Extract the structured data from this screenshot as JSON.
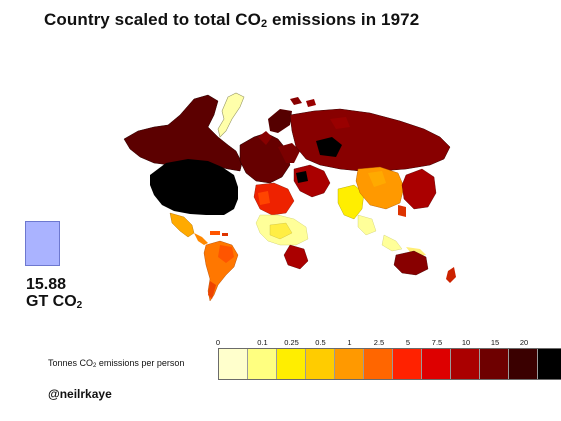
{
  "title": {
    "prefix": "Country scaled to total CO",
    "subscript": "2",
    "suffix": " emissions in 1972"
  },
  "total": {
    "value": "15.88",
    "unit_prefix": "GT CO",
    "unit_subscript": "2",
    "box_color": "#aab3ff"
  },
  "legend": {
    "label_prefix": "Tonnes CO",
    "label_subscript": "2",
    "label_suffix": " emissions per person",
    "ticks": [
      "0",
      "0.1",
      "0.25",
      "0.5",
      "1",
      "2.5",
      "5",
      "7.5",
      "10",
      "15",
      "20"
    ],
    "colors": [
      "#ffffcc",
      "#ffff80",
      "#ffee00",
      "#ffcc00",
      "#ff9900",
      "#ff6600",
      "#ff2200",
      "#dd0000",
      "#aa0000",
      "#6e0000",
      "#3a0000",
      "#000000"
    ]
  },
  "credit": "@neilrkaye"
}
